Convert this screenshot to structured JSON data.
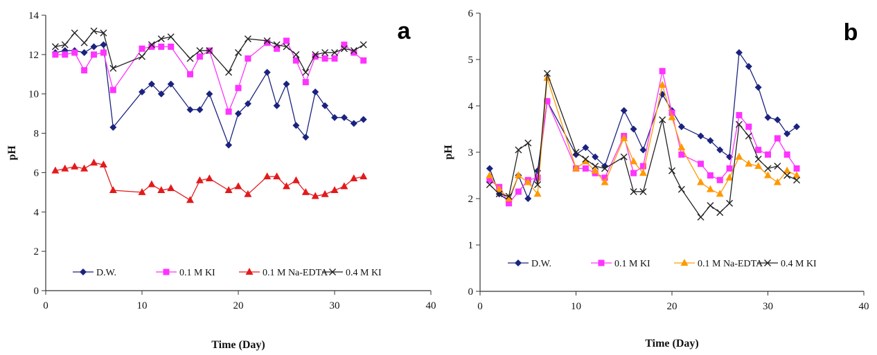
{
  "chart_data": [
    {
      "type": "line",
      "panel_label": "a",
      "xlabel": "Time (Day)",
      "ylabel": "pH",
      "xlim": [
        0,
        40
      ],
      "ylim": [
        0,
        14
      ],
      "xticks": [
        0,
        10,
        20,
        30,
        40
      ],
      "yticks": [
        0,
        2,
        4,
        6,
        8,
        10,
        12,
        14
      ],
      "x_tick_labels": [
        "0",
        "10",
        "20",
        "30",
        "40"
      ],
      "y_tick_labels": [
        "0",
        "2",
        "4",
        "6",
        "8",
        "10",
        "12",
        "14"
      ],
      "grid": false,
      "legend_position": "bottom",
      "x": [
        1,
        2,
        3,
        4,
        5,
        6,
        7,
        10,
        11,
        12,
        13,
        15,
        16,
        17,
        19,
        20,
        21,
        23,
        24,
        25,
        26,
        27,
        28,
        29,
        30,
        31,
        32,
        33
      ],
      "series": [
        {
          "name": "D.W.",
          "color": "#1a237e",
          "marker": "diamond",
          "values": [
            12.1,
            12.2,
            12.2,
            12.1,
            12.4,
            12.5,
            8.3,
            10.1,
            10.5,
            10.0,
            10.5,
            9.2,
            9.2,
            10.0,
            7.4,
            9.0,
            9.5,
            11.1,
            9.4,
            10.5,
            8.4,
            7.8,
            10.1,
            9.4,
            8.8,
            8.8,
            8.5,
            8.7
          ]
        },
        {
          "name": "0.1 M KI",
          "color": "#ff33ff",
          "marker": "square",
          "values": [
            12.0,
            12.0,
            12.1,
            11.2,
            12.0,
            12.1,
            10.2,
            12.3,
            12.4,
            12.4,
            12.4,
            11.0,
            11.9,
            12.2,
            9.1,
            10.3,
            11.8,
            12.6,
            12.3,
            12.7,
            11.7,
            10.6,
            11.9,
            11.8,
            11.8,
            12.5,
            12.1,
            11.7
          ]
        },
        {
          "name": "0.1 M Na-EDTA",
          "color": "#e31a1c",
          "marker": "triangle",
          "values": [
            6.1,
            6.2,
            6.3,
            6.2,
            6.5,
            6.4,
            5.1,
            5.0,
            5.4,
            5.1,
            5.2,
            4.6,
            5.6,
            5.7,
            5.1,
            5.3,
            4.9,
            5.8,
            5.8,
            5.3,
            5.6,
            5.0,
            4.8,
            4.9,
            5.1,
            5.3,
            5.7,
            5.8
          ]
        },
        {
          "name": "0.4 M KI",
          "color": "#222222",
          "marker": "x",
          "values": [
            12.4,
            12.5,
            13.1,
            12.6,
            13.2,
            13.1,
            11.3,
            11.9,
            12.5,
            12.8,
            12.9,
            11.8,
            12.2,
            12.2,
            11.1,
            12.1,
            12.8,
            12.7,
            12.5,
            12.4,
            12.0,
            11.1,
            12.0,
            12.1,
            12.1,
            12.3,
            12.2,
            12.5
          ]
        }
      ]
    },
    {
      "type": "line",
      "panel_label": "b",
      "xlabel": "Time (Day)",
      "ylabel": "pH",
      "xlim": [
        0,
        40
      ],
      "ylim": [
        0,
        6
      ],
      "xticks": [
        0,
        10,
        20,
        30,
        40
      ],
      "yticks": [
        0,
        1,
        2,
        3,
        4,
        5,
        6
      ],
      "x_tick_labels": [
        "0",
        "10",
        "20",
        "30",
        "40"
      ],
      "y_tick_labels": [
        "0",
        "1",
        "2",
        "3",
        "4",
        "5",
        "6"
      ],
      "grid": false,
      "legend_position": "bottom",
      "x": [
        1,
        2,
        3,
        4,
        5,
        6,
        7,
        10,
        11,
        12,
        13,
        15,
        16,
        17,
        19,
        20,
        21,
        23,
        24,
        25,
        26,
        27,
        28,
        29,
        30,
        31,
        32,
        33
      ],
      "series": [
        {
          "name": "D.W.",
          "color": "#1a237e",
          "marker": "diamond",
          "values": [
            2.65,
            2.1,
            1.95,
            2.5,
            2.0,
            2.6,
            4.1,
            2.95,
            3.1,
            2.9,
            2.7,
            3.9,
            3.5,
            3.05,
            4.25,
            3.9,
            3.55,
            3.35,
            3.25,
            3.05,
            2.9,
            5.15,
            4.85,
            4.4,
            3.75,
            3.7,
            3.4,
            3.55
          ]
        },
        {
          "name": "0.1 M KI",
          "color": "#ff33ff",
          "marker": "square",
          "values": [
            2.4,
            2.25,
            1.9,
            2.15,
            2.4,
            2.45,
            4.1,
            2.65,
            2.65,
            2.55,
            2.45,
            3.35,
            2.55,
            2.7,
            4.75,
            3.85,
            2.95,
            2.75,
            2.5,
            2.4,
            2.65,
            3.8,
            3.55,
            3.05,
            2.95,
            3.3,
            2.95,
            2.65
          ]
        },
        {
          "name": "0.1 M Na-EDTA",
          "color": "#ff9900",
          "marker": "triangle",
          "values": [
            2.5,
            2.2,
            2.0,
            2.5,
            2.35,
            2.1,
            4.6,
            2.65,
            2.8,
            2.6,
            2.35,
            3.3,
            2.8,
            2.55,
            4.45,
            3.75,
            3.1,
            2.35,
            2.2,
            2.1,
            2.45,
            2.9,
            2.75,
            2.7,
            2.5,
            2.35,
            2.6,
            2.5
          ]
        },
        {
          "name": "0.4 M KI",
          "color": "#222222",
          "marker": "x",
          "values": [
            2.3,
            2.1,
            2.05,
            3.05,
            3.2,
            2.3,
            4.7,
            3.0,
            2.85,
            2.7,
            2.65,
            2.9,
            2.15,
            2.15,
            3.7,
            2.6,
            2.2,
            1.6,
            1.85,
            1.7,
            1.9,
            3.6,
            3.35,
            2.85,
            2.65,
            2.7,
            2.5,
            2.4
          ]
        }
      ]
    }
  ]
}
